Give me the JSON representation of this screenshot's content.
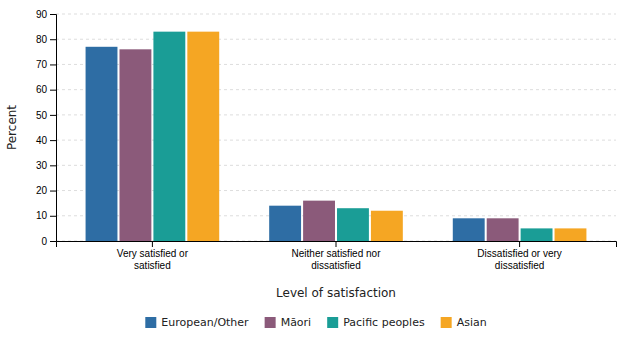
{
  "chart_data": {
    "type": "bar",
    "categories": [
      "Very satisfied or\nsatisfied",
      "Neither satisfied nor\ndissatisfied",
      "Dissatisfied or very\ndissatisfied"
    ],
    "series": [
      {
        "name": "European/Other",
        "color": "#2e6da4",
        "values": [
          77,
          14,
          9
        ]
      },
      {
        "name": "Māori",
        "color": "#8b5a7a",
        "values": [
          76,
          16,
          9
        ]
      },
      {
        "name": "Pacific peoples",
        "color": "#1a9d96",
        "values": [
          83,
          13,
          5
        ]
      },
      {
        "name": "Asian",
        "color": "#f5a623",
        "values": [
          83,
          12,
          5
        ]
      }
    ],
    "xlabel": "Level of satisfaction",
    "ylabel": "Percent",
    "ylim": [
      0,
      90
    ],
    "yticks": [
      0,
      10,
      20,
      30,
      40,
      50,
      60,
      70,
      80,
      90
    ],
    "grid": true,
    "legend": "bottom"
  }
}
